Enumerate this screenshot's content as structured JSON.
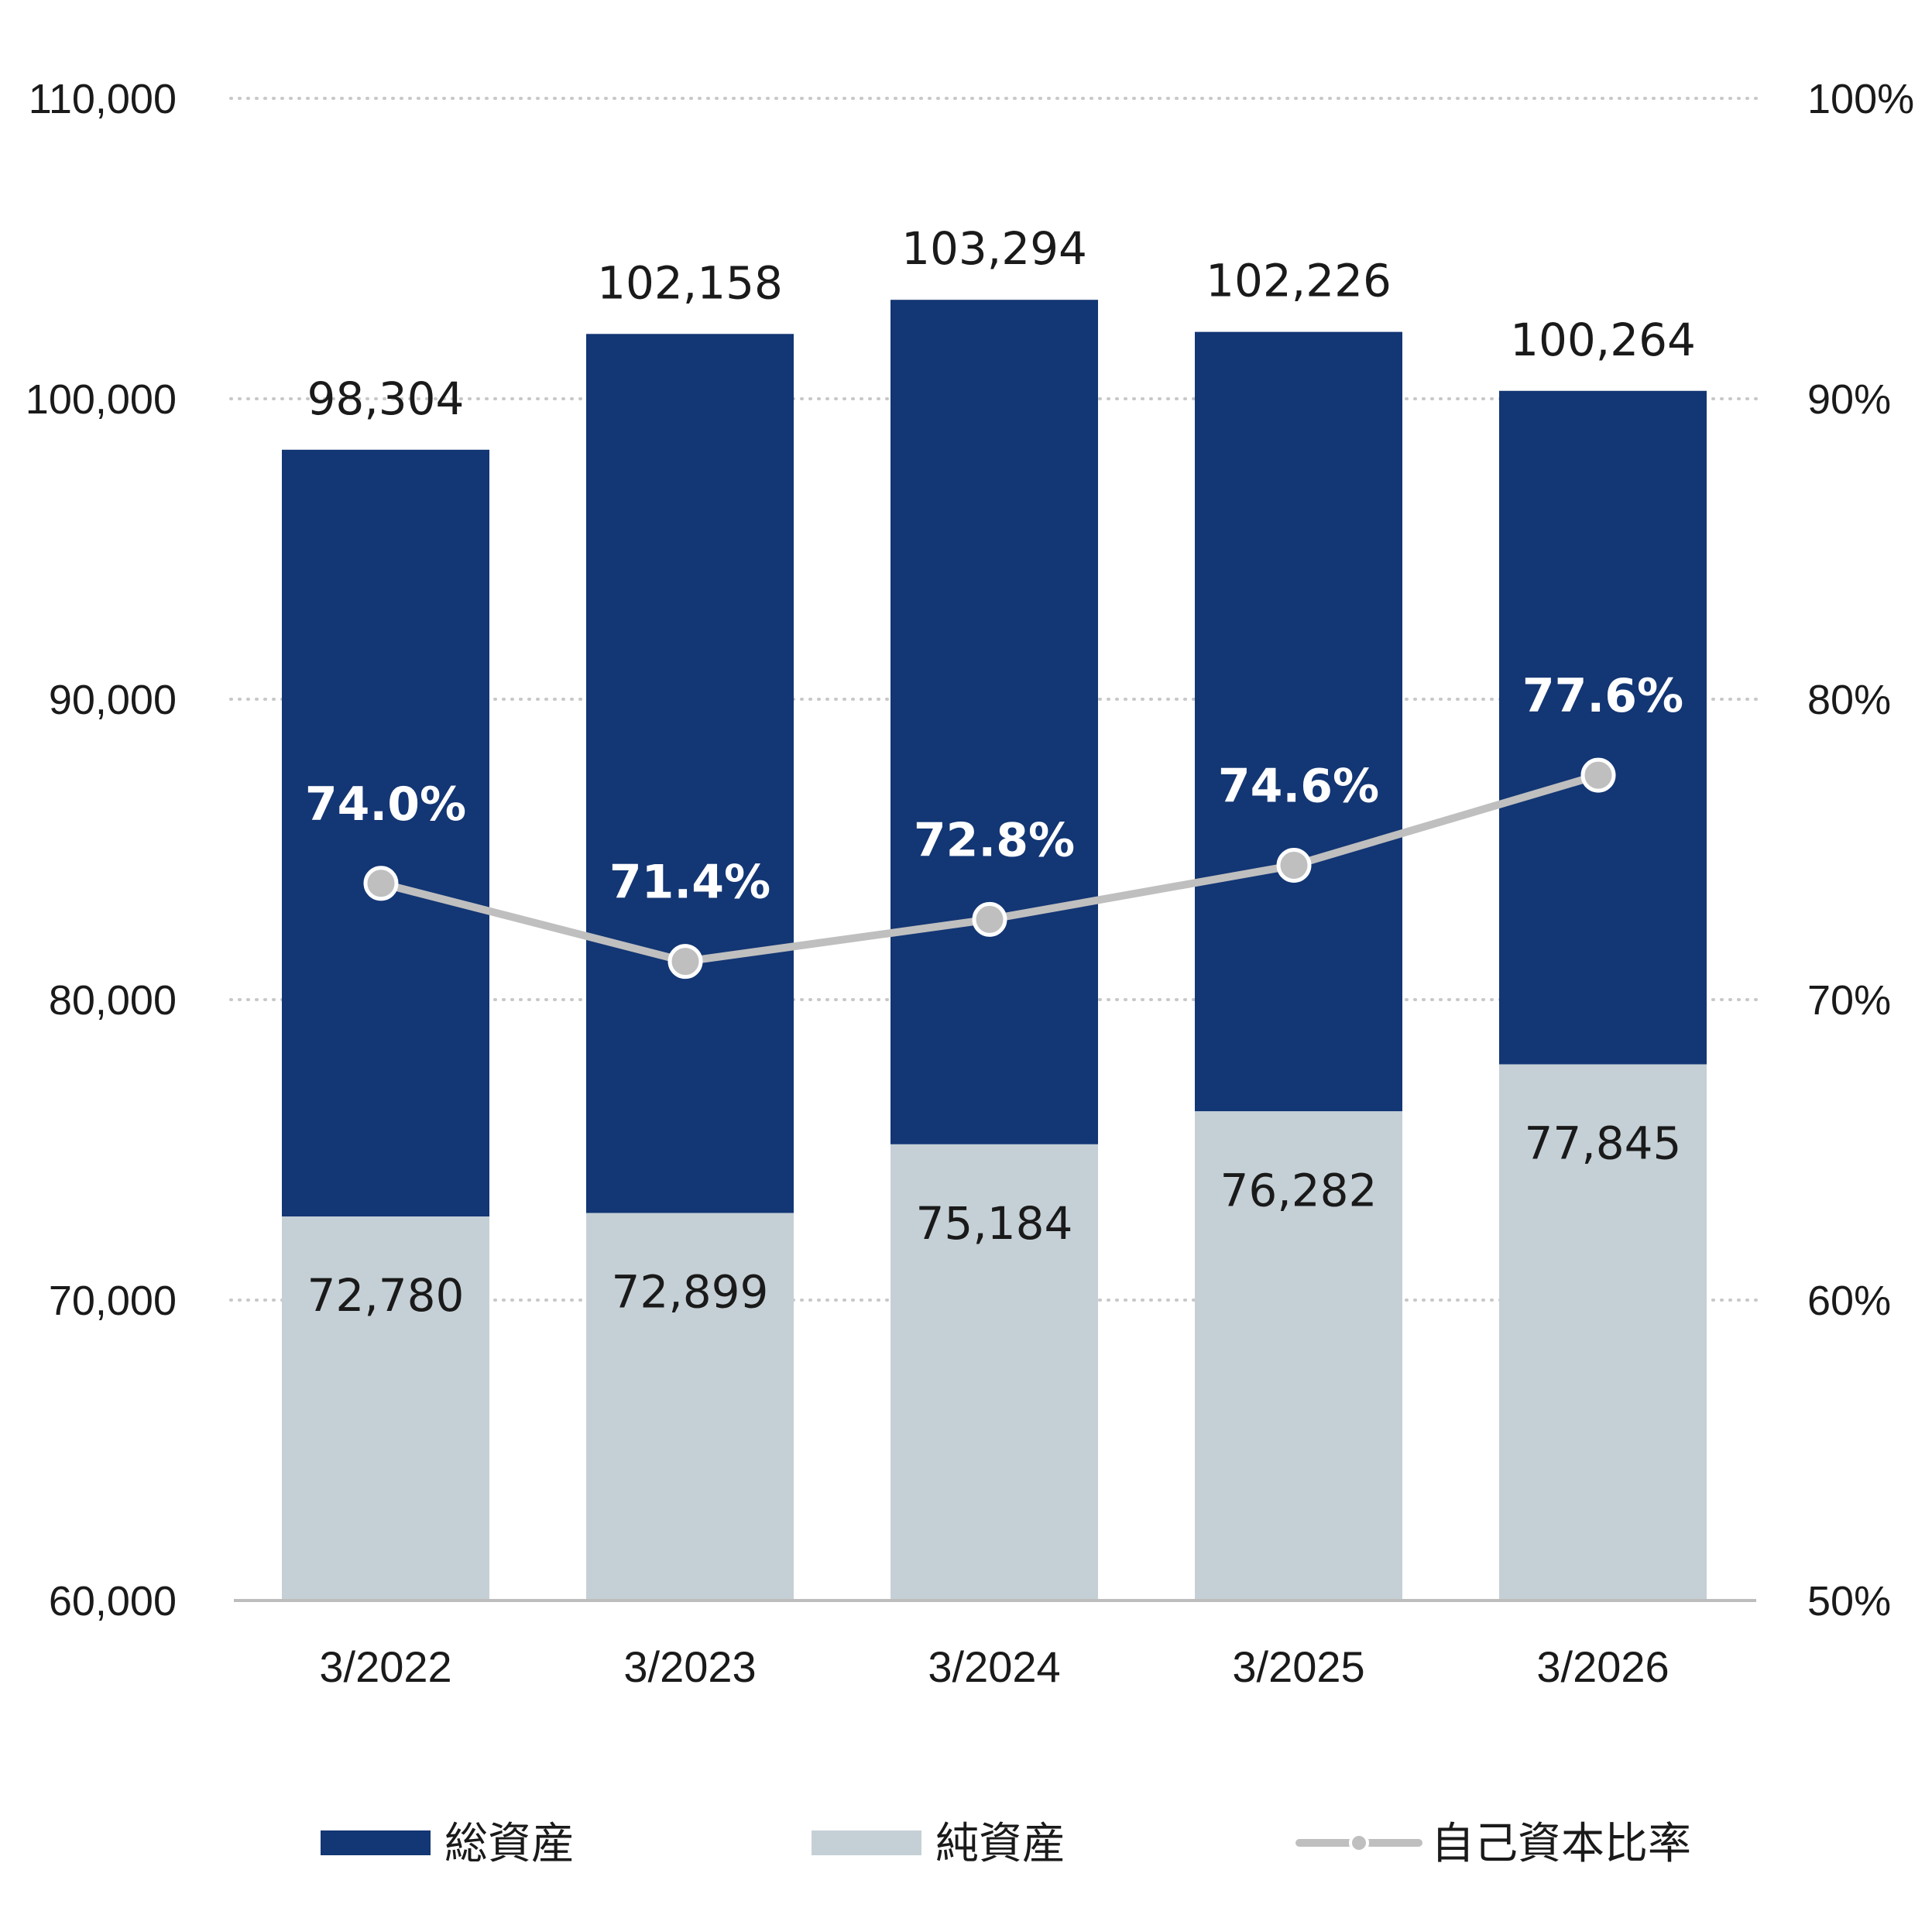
{
  "chart_data": {
    "type": "bar",
    "categories": [
      "3/2022",
      "3/2023",
      "3/2024",
      "3/2025",
      "3/2026"
    ],
    "series": [
      {
        "name": "総資産",
        "type": "bar",
        "axis": "left",
        "values": [
          98304,
          102158,
          103294,
          102226,
          100264
        ]
      },
      {
        "name": "純資産",
        "type": "bar",
        "axis": "left",
        "values": [
          72780,
          72899,
          75184,
          76282,
          77845
        ]
      },
      {
        "name": "自己資本比率",
        "type": "line",
        "axis": "right",
        "values": [
          74.0,
          71.4,
          72.8,
          74.6,
          77.6
        ]
      }
    ],
    "bar_labels": {
      "total": [
        "98,304",
        "102,158",
        "103,294",
        "102,226",
        "100,264"
      ],
      "net": [
        "72,780",
        "72,899",
        "75,184",
        "76,282",
        "77,845"
      ]
    },
    "ratio_labels": [
      "74.0%",
      "71.4%",
      "72.8%",
      "74.6%",
      "77.6%"
    ],
    "y_left": {
      "ylim": [
        60000,
        110000
      ],
      "ticks": [
        "60,000",
        "70,000",
        "80,000",
        "90,000",
        "100,000",
        "110,000"
      ]
    },
    "y_right": {
      "ylim": [
        50,
        100
      ],
      "ticks": [
        "50%",
        "60%",
        "70%",
        "80%",
        "90%",
        "100%"
      ]
    },
    "grid": true,
    "legend": {
      "position": "bottom",
      "items": [
        "総資産",
        "純資産",
        "自己資本比率"
      ]
    }
  },
  "colors": {
    "total": "#133674",
    "net": "#c5d0d6",
    "line": "#bfbfbf",
    "grid": "#c8c8c8",
    "axis": "#bdbdbd",
    "text": "#1a1a1a",
    "ratio_text": "#ffffff"
  }
}
